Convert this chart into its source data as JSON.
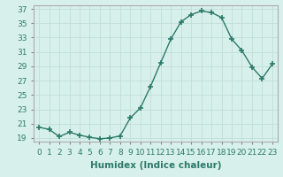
{
  "x": [
    0,
    1,
    2,
    3,
    4,
    5,
    6,
    7,
    8,
    9,
    10,
    11,
    12,
    13,
    14,
    15,
    16,
    17,
    18,
    19,
    20,
    21,
    22,
    23
  ],
  "y": [
    20.5,
    20.2,
    19.2,
    19.8,
    19.4,
    19.1,
    18.9,
    19.0,
    19.3,
    21.8,
    23.2,
    26.2,
    29.5,
    32.8,
    35.2,
    36.2,
    36.7,
    36.5,
    35.8,
    32.8,
    31.2,
    28.9,
    27.3,
    29.3
  ],
  "line_color": "#2d7a6a",
  "marker": "+",
  "marker_size": 4,
  "bg_color": "#d8f0ec",
  "grid_color": "#c0ddd8",
  "xlabel": "Humidex (Indice chaleur)",
  "ylabel": "",
  "title": "",
  "xlim": [
    -0.5,
    23.5
  ],
  "ylim": [
    18.5,
    37.5
  ],
  "yticks": [
    19,
    21,
    23,
    25,
    27,
    29,
    31,
    33,
    35,
    37
  ],
  "xticks": [
    0,
    1,
    2,
    3,
    4,
    5,
    6,
    7,
    8,
    9,
    10,
    11,
    12,
    13,
    14,
    15,
    16,
    17,
    18,
    19,
    20,
    21,
    22,
    23
  ],
  "xlabel_fontsize": 7.5,
  "tick_fontsize": 6.5,
  "linewidth": 1.0,
  "marker_lw": 1.2
}
